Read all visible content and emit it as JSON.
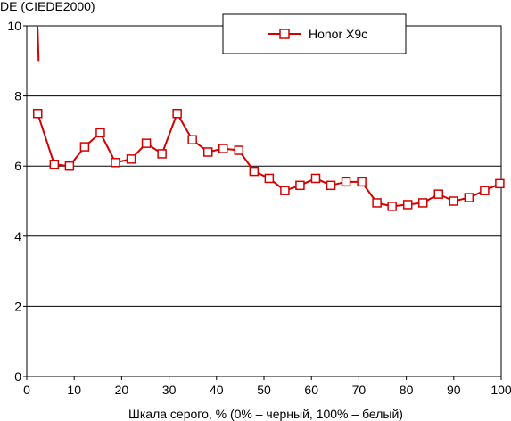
{
  "colors": {
    "series": "#d40000",
    "marker_fill": "#ffffff",
    "grid": "#000000",
    "axis": "#000000",
    "background": "#ffffff"
  },
  "chart_data": {
    "type": "line",
    "title": "",
    "xlabel": "Шкала серого, % (0% – черный, 100% – белый)",
    "ylabel": "DE (CIEDE2000)",
    "xlim": [
      0,
      100
    ],
    "ylim": [
      0,
      10
    ],
    "x_ticks": [
      "0",
      "10",
      "20",
      "30",
      "40",
      "50",
      "60",
      "70",
      "80",
      "90",
      "100"
    ],
    "y_ticks": [
      "0",
      "2",
      "4",
      "6",
      "8",
      "10"
    ],
    "grid": "horizontal",
    "legend_position": "top-center",
    "series": [
      {
        "name": "Honor X9c",
        "color": "#d40000",
        "marker": "square-open",
        "lead_in": [
          [
            2.2,
            10.0
          ],
          [
            2.3,
            9.9
          ],
          [
            2.5,
            9.0
          ]
        ],
        "x": [
          2.3,
          5.8,
          9.0,
          12.2,
          15.5,
          18.7,
          22.0,
          25.2,
          28.5,
          31.7,
          34.9,
          38.2,
          41.4,
          44.7,
          47.9,
          51.1,
          54.4,
          57.6,
          60.9,
          64.1,
          67.3,
          70.6,
          73.8,
          77.0,
          80.3,
          83.5,
          86.8,
          90.0,
          93.2,
          96.5,
          99.7
        ],
        "values": [
          7.5,
          6.05,
          6.0,
          6.55,
          6.95,
          6.1,
          6.2,
          6.65,
          6.35,
          7.5,
          6.75,
          6.4,
          6.5,
          6.45,
          5.85,
          5.65,
          5.3,
          5.45,
          5.65,
          5.45,
          5.55,
          5.55,
          4.95,
          4.85,
          4.9,
          4.95,
          5.2,
          5.0,
          5.1,
          5.3,
          5.5
        ]
      }
    ]
  }
}
